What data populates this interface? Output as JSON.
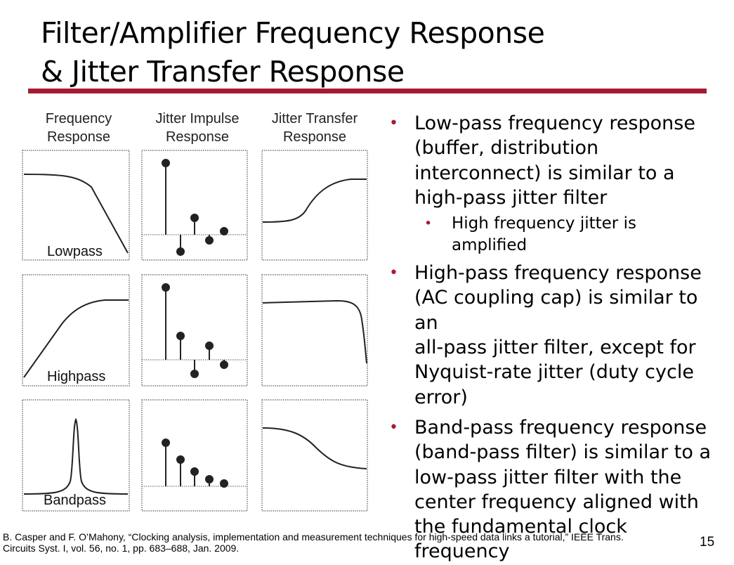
{
  "title": {
    "line1": "Filter/Amplifier Frequency Response",
    "line2": "& Jitter Transfer Response"
  },
  "figure": {
    "col_headers": [
      {
        "line1": "Frequency",
        "line2": "Response"
      },
      {
        "line1": "Jitter Impulse",
        "line2": "Response"
      },
      {
        "line1": "Jitter Transfer",
        "line2": "Response"
      }
    ],
    "rows": [
      {
        "label": "Lowpass"
      },
      {
        "label": "Highpass"
      },
      {
        "label": "Bandpass"
      }
    ],
    "colors": {
      "line": "#222222",
      "frame": "#555555"
    }
  },
  "bullets": [
    {
      "lines": [
        "Low-pass frequency response",
        "(buffer, distribution",
        "interconnect) is similar to a",
        "high-pass jitter filter"
      ],
      "sub": [
        "High frequency jitter is",
        "amplified"
      ]
    },
    {
      "lines": [
        "High-pass frequency response",
        "(AC coupling cap) is similar to an",
        "all-pass jitter filter, except for",
        "Nyquist-rate jitter (duty cycle",
        "error)"
      ]
    },
    {
      "lines": [
        "Band-pass frequency response",
        "(band-pass filter) is similar to a",
        "low-pass jitter filter with the",
        "center frequency aligned with",
        "the fundamental clock frequency"
      ]
    }
  ],
  "bullet_symbol": "•",
  "bullet_color": "#a51c30",
  "accent_color": "#a51c30",
  "citation": {
    "line1": "B. Casper and F. O’Mahony, “Clocking analysis, implementation and measurement techniques for high-speed data links a tutorial,” IEEE Trans.",
    "line2": "Circuits Syst. I, vol. 56, no. 1, pp. 683–688, Jan. 2009."
  },
  "page_number": "15"
}
